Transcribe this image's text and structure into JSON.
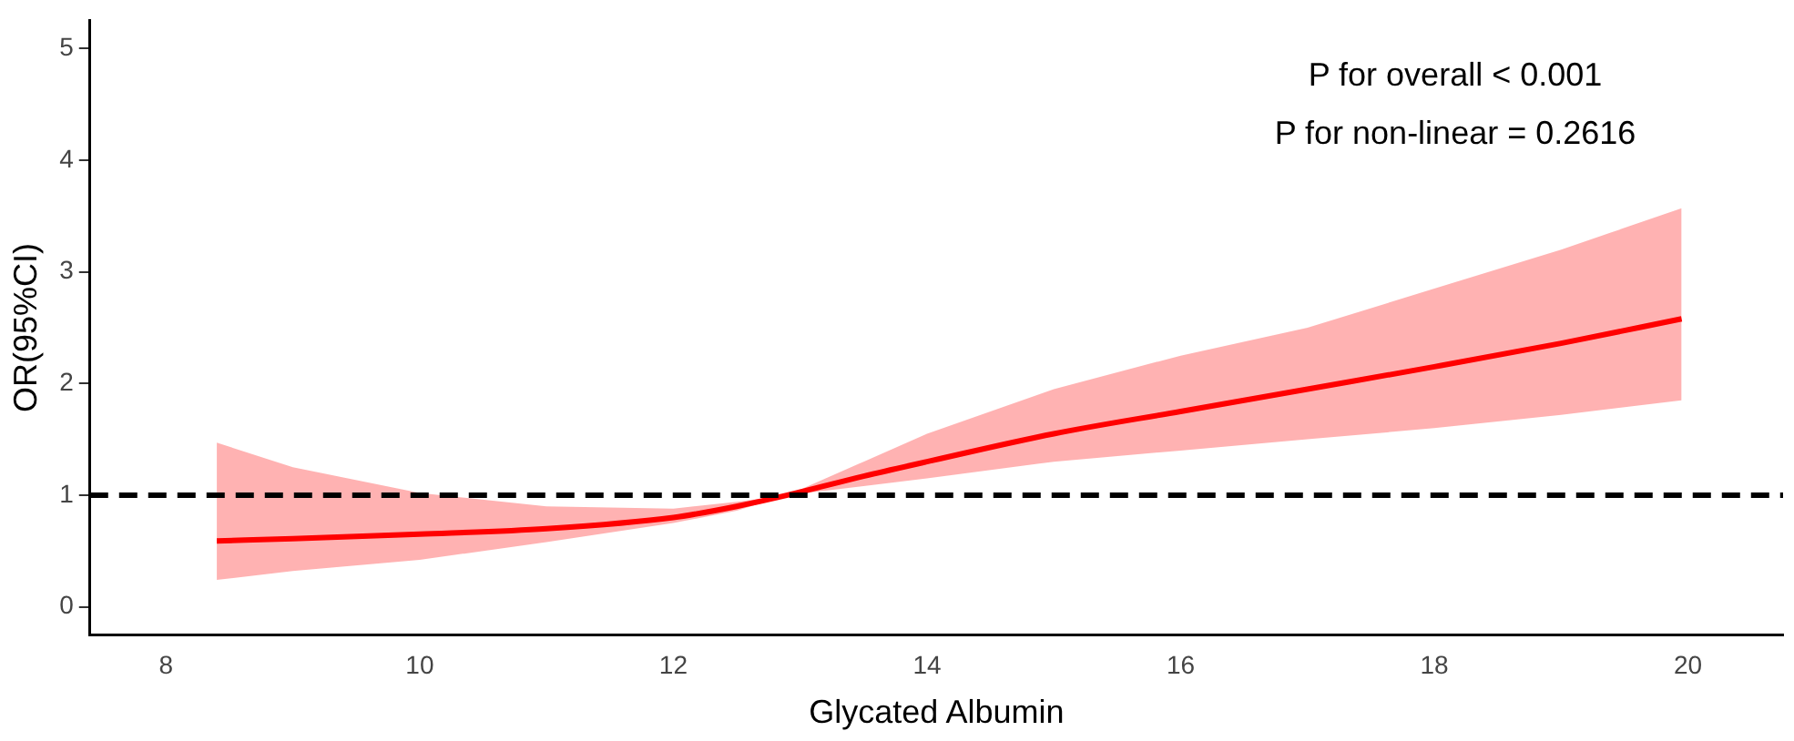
{
  "chart_data": {
    "type": "line",
    "xlabel": "Glycated Albumin",
    "ylabel": "OR(95%CI)",
    "annotations": [
      "P for overall < 0.001",
      "P for non-linear = 0.2616"
    ],
    "xlim": [
      7.4,
      20.75
    ],
    "xticks": [
      8,
      10,
      12,
      14,
      16,
      18,
      20
    ],
    "ylim": [
      -0.25,
      5.25
    ],
    "yticks": [
      0,
      1,
      2,
      3,
      4,
      5
    ],
    "grid": false,
    "legend": false,
    "marker": "none",
    "line_style": "solid",
    "ref_lines": [
      {
        "axis": "y",
        "value": 1,
        "color": "#000000",
        "line_style": "dashed"
      }
    ],
    "series": [
      {
        "color": "#ff0000",
        "x": [
          8.4,
          9,
          10,
          11,
          12,
          12.5,
          12.9,
          13.5,
          14,
          15,
          16,
          17,
          18,
          19,
          19.95
        ],
        "values": [
          0.59,
          0.61,
          0.65,
          0.7,
          0.8,
          0.9,
          1,
          1.17,
          1.3,
          1.55,
          1.75,
          1.95,
          2.15,
          2.36,
          2.58
        ],
        "lower": [
          0.24,
          0.32,
          0.42,
          0.58,
          0.75,
          0.86,
          1,
          1.08,
          1.15,
          1.3,
          1.4,
          1.5,
          1.6,
          1.72,
          1.85
        ],
        "upper": [
          1.47,
          1.25,
          1.02,
          0.9,
          0.88,
          0.94,
          1,
          1.3,
          1.55,
          1.95,
          2.25,
          2.5,
          2.85,
          3.2,
          3.57
        ]
      }
    ]
  }
}
